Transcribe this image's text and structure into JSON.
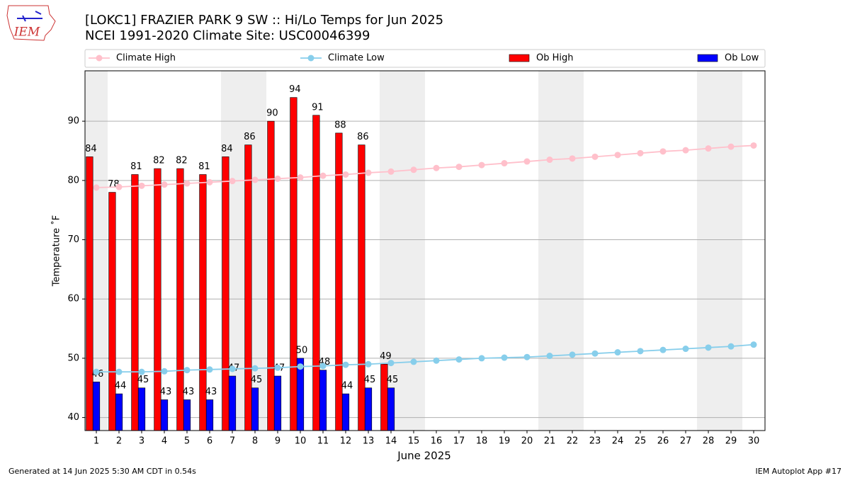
{
  "logo": "IEM",
  "chart_data": {
    "type": "bar",
    "title": "[LOKC1] FRAZIER PARK 9 SW :: Hi/Lo Temps for Jun 2025",
    "subtitle": "NCEI 1991-2020 Climate Site: USC00046399",
    "xlabel": "June 2025",
    "ylabel": "Temperature ˚F",
    "x": [
      1,
      2,
      3,
      4,
      5,
      6,
      7,
      8,
      9,
      10,
      11,
      12,
      13,
      14,
      15,
      16,
      17,
      18,
      19,
      20,
      21,
      22,
      23,
      24,
      25,
      26,
      27,
      28,
      29,
      30
    ],
    "xlim": [
      0.5,
      30.5
    ],
    "xticks": [
      1,
      2,
      3,
      4,
      5,
      6,
      7,
      8,
      9,
      10,
      11,
      12,
      13,
      14,
      15,
      16,
      17,
      18,
      19,
      20,
      21,
      22,
      23,
      24,
      25,
      26,
      27,
      28,
      29,
      30
    ],
    "ylim": [
      37.8,
      98.5
    ],
    "yticks": [
      40,
      50,
      60,
      70,
      80,
      90
    ],
    "grid": true,
    "shaded_spans": [
      [
        0.5,
        1.5
      ],
      [
        6.5,
        8.5
      ],
      [
        13.5,
        15.5
      ],
      [
        20.5,
        22.5
      ],
      [
        27.5,
        29.5
      ]
    ],
    "series": [
      {
        "name": "Climate High",
        "type": "line",
        "color": "#ffc0cb",
        "values": [
          78.8,
          78.9,
          79.1,
          79.3,
          79.5,
          79.7,
          79.9,
          80.1,
          80.3,
          80.5,
          80.8,
          81.0,
          81.3,
          81.5,
          81.8,
          82.1,
          82.3,
          82.6,
          82.9,
          83.2,
          83.5,
          83.7,
          84.0,
          84.3,
          84.6,
          84.9,
          85.1,
          85.4,
          85.7,
          85.9
        ]
      },
      {
        "name": "Climate Low",
        "type": "line",
        "color": "#87ceeb",
        "values": [
          47.7,
          47.7,
          47.7,
          47.8,
          48.0,
          48.1,
          48.2,
          48.3,
          48.4,
          48.6,
          48.7,
          48.9,
          49.0,
          49.2,
          49.4,
          49.6,
          49.8,
          50.0,
          50.1,
          50.2,
          50.4,
          50.6,
          50.8,
          51.0,
          51.2,
          51.4,
          51.6,
          51.8,
          52.0,
          52.3
        ]
      },
      {
        "name": "Ob High",
        "type": "bar",
        "color": "#ff0000",
        "values": [
          84,
          78,
          81,
          82,
          82,
          81,
          84,
          86,
          90,
          94,
          91,
          88,
          86,
          49,
          null,
          null,
          null,
          null,
          null,
          null,
          null,
          null,
          null,
          null,
          null,
          null,
          null,
          null,
          null,
          null
        ]
      },
      {
        "name": "Ob Low",
        "type": "bar",
        "color": "#0000ff",
        "values": [
          46,
          44,
          45,
          43,
          43,
          43,
          47,
          45,
          47,
          50,
          48,
          44,
          45,
          45,
          null,
          null,
          null,
          null,
          null,
          null,
          null,
          null,
          null,
          null,
          null,
          null,
          null,
          null,
          null,
          null
        ]
      }
    ],
    "footer_left": "Generated at 14 Jun 2025 5:30 AM CDT in 0.54s",
    "footer_right": "IEM Autoplot App #17"
  }
}
